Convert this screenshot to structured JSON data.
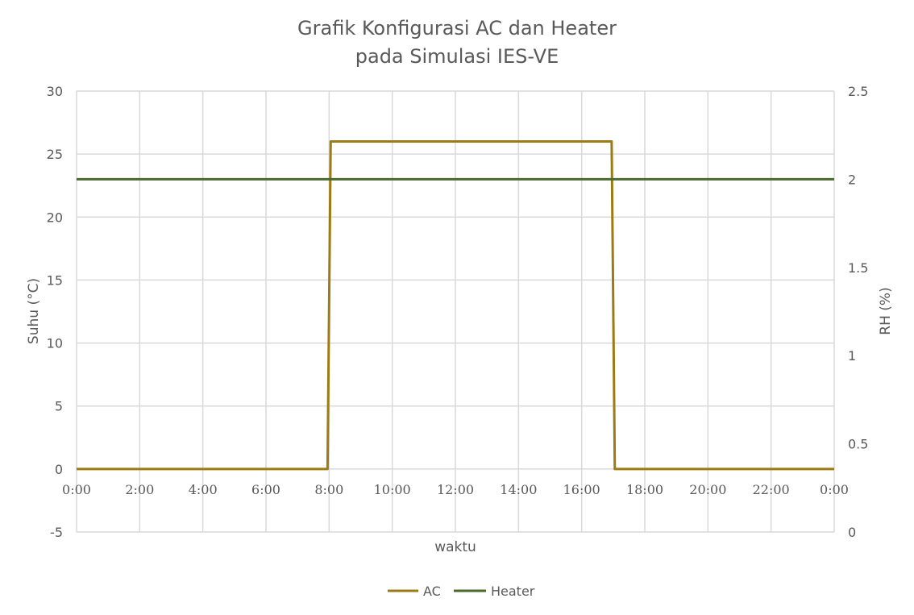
{
  "chart_data": {
    "type": "line",
    "title": [
      "Grafik Konfigurasi AC dan Heater",
      "pada Simulasi IES-VE"
    ],
    "xlabel": "waktu",
    "ylabel": "Suhu (°C)",
    "y2label": "RH (%)",
    "xlim": [
      0,
      24
    ],
    "ylim": [
      -5,
      30
    ],
    "y2lim": [
      0,
      2.5
    ],
    "x_ticks": [
      "0:00",
      "2:00",
      "4:00",
      "6:00",
      "8:00",
      "10:00",
      "12:00",
      "14:00",
      "16:00",
      "18:00",
      "20:00",
      "22:00",
      "0:00"
    ],
    "y_ticks": [
      "-5",
      "0",
      "5",
      "10",
      "15",
      "20",
      "25",
      "30"
    ],
    "y2_ticks": [
      "0",
      "0.5",
      "1",
      "1.5",
      "2",
      "2.5"
    ],
    "grid": true,
    "legend_position": "bottom",
    "series": [
      {
        "name": "AC",
        "color": "#9c7a14",
        "x": [
          0,
          7.95,
          8.05,
          16.95,
          17.05,
          24
        ],
        "y": [
          0,
          0,
          26,
          26,
          0,
          0
        ]
      },
      {
        "name": "Heater",
        "color": "#4a6a2e",
        "x": [
          0,
          24
        ],
        "y": [
          23,
          23
        ]
      }
    ]
  }
}
